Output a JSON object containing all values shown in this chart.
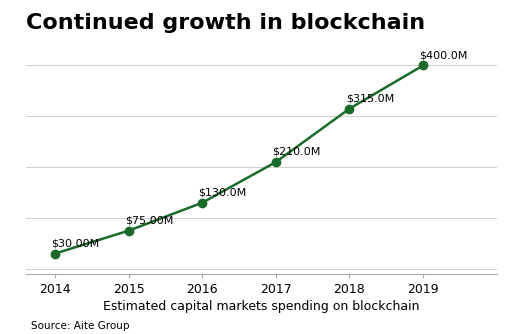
{
  "years": [
    2014,
    2015,
    2016,
    2017,
    2018,
    2019
  ],
  "values": [
    30,
    75,
    130,
    210,
    315,
    400
  ],
  "labels": [
    "$30.00M",
    "$75.00M",
    "$130.0M",
    "$210.0M",
    "$315.0M",
    "$400.0M"
  ],
  "label_ha": [
    "left",
    "left",
    "left",
    "left",
    "left",
    "left"
  ],
  "label_dx": [
    -0.05,
    -0.05,
    -0.05,
    -0.05,
    -0.05,
    -0.05
  ],
  "label_dy": [
    10,
    10,
    10,
    10,
    10,
    10
  ],
  "title": "Continued growth in blockchain",
  "xlabel": "Estimated capital markets spending on blockchain",
  "source": "Source: Aite Group",
  "line_color": "#1a6b2a",
  "marker_color": "#1a6b2a",
  "background_color": "#ffffff",
  "grid_color": "#d0d0d0",
  "title_fontsize": 16,
  "label_fontsize": 8,
  "axis_fontsize": 9,
  "source_fontsize": 7.5,
  "ylim": [
    -10,
    450
  ],
  "xlim": [
    2013.6,
    2020.0
  ]
}
